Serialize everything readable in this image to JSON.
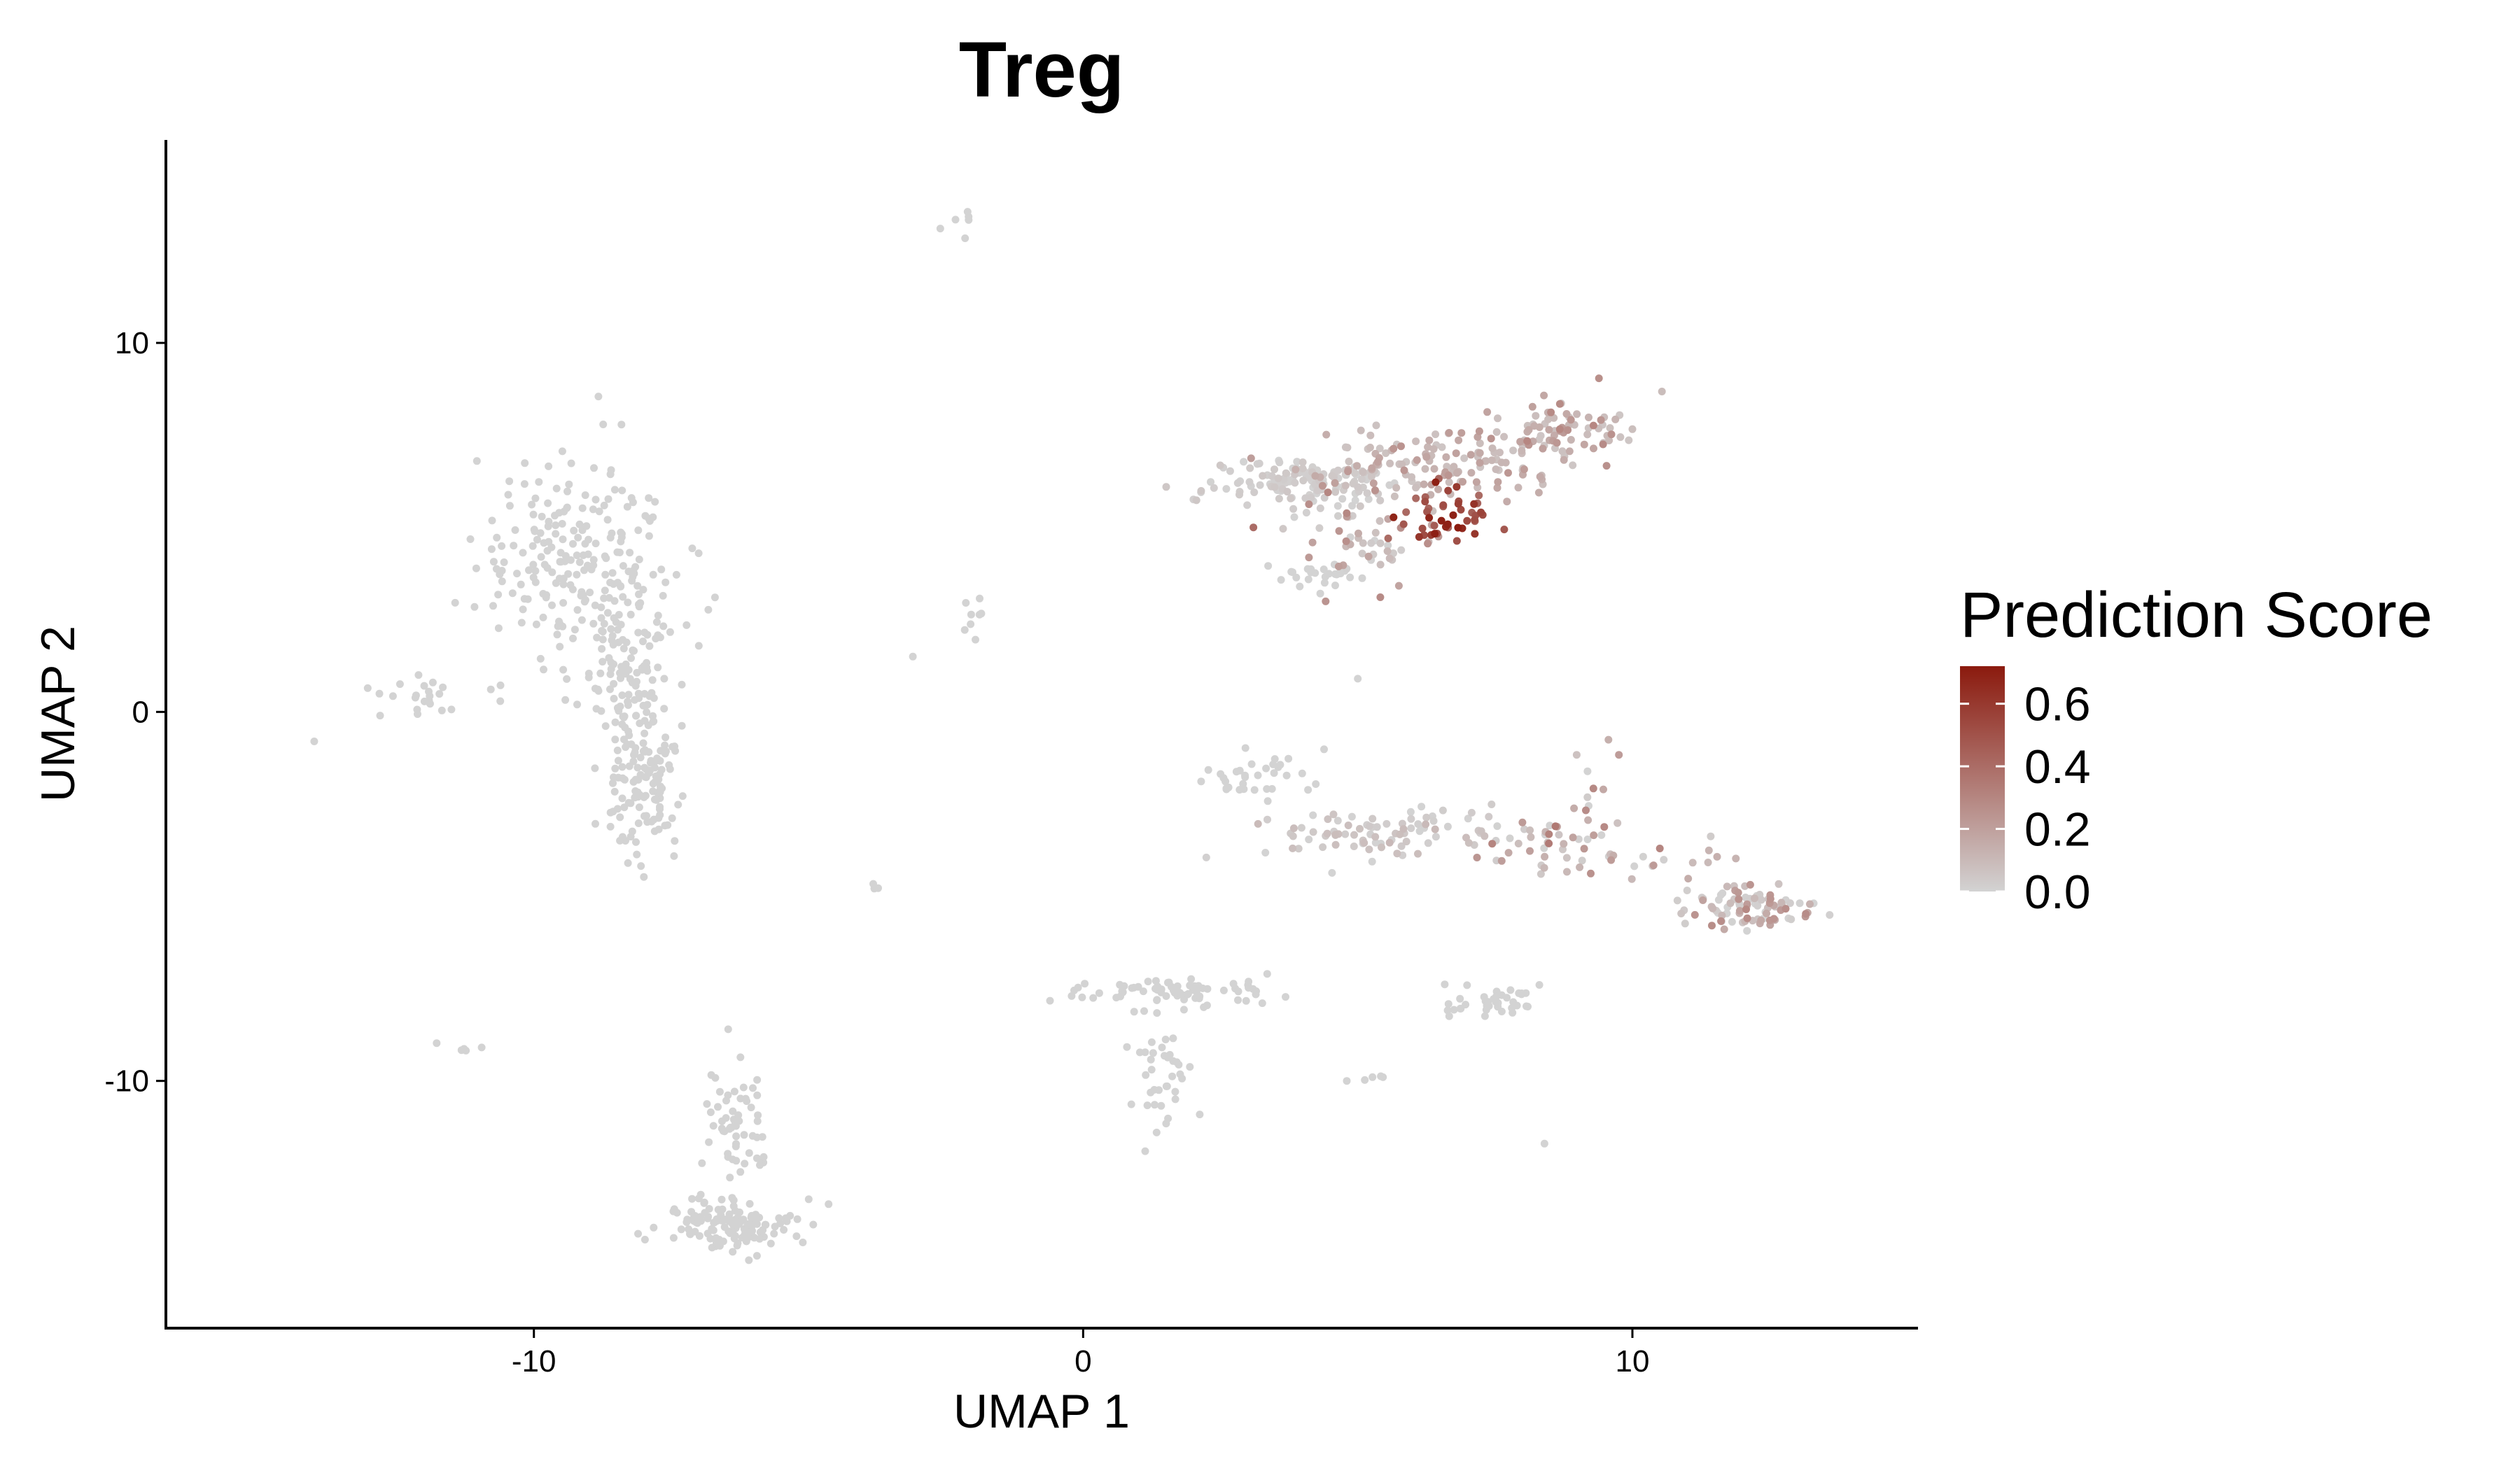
{
  "chart_data": {
    "type": "scatter",
    "title": "Treg",
    "xlabel": "UMAP 1",
    "ylabel": "UMAP 2",
    "xlim": [
      -16.7,
      15.2
    ],
    "ylim": [
      -16.7,
      15.5
    ],
    "x_ticks": [
      -10,
      0,
      10
    ],
    "x_tick_labels": [
      "-10",
      "0",
      "10"
    ],
    "y_ticks": [
      -10,
      0,
      10
    ],
    "y_tick_labels": [
      "-10",
      "0",
      "10"
    ],
    "grid": false,
    "legend": {
      "title": "Prediction Score",
      "placement": "right",
      "ticks": [
        0.0,
        0.2,
        0.4,
        0.6
      ],
      "tick_labels": [
        "0.0",
        "0.2",
        "0.4",
        "0.6"
      ],
      "min": 0.0,
      "max": 0.72,
      "low_color": "#d3d3d3",
      "high_color": "#8b1a0e"
    },
    "point_color_low": "#d3d3d3",
    "point_color_high": "#8b1a0e",
    "clusters": [
      {
        "cx": -9.2,
        "cy": 4.2,
        "sx": 0.9,
        "sy": 1.5,
        "n": 220,
        "s": [
          0,
          0
        ]
      },
      {
        "cx": -8.2,
        "cy": 1.0,
        "sx": 0.35,
        "sy": 1.2,
        "n": 110,
        "s": [
          0,
          0
        ]
      },
      {
        "cx": -8.0,
        "cy": -2.0,
        "sx": 0.35,
        "sy": 0.9,
        "n": 120,
        "s": [
          0,
          0
        ]
      },
      {
        "cx": -12.2,
        "cy": 0.4,
        "sx": 0.5,
        "sy": 0.3,
        "n": 22,
        "s": [
          0,
          0
        ]
      },
      {
        "cx": -6.3,
        "cy": -11.2,
        "sx": 0.25,
        "sy": 0.9,
        "n": 60,
        "s": [
          0,
          0
        ]
      },
      {
        "cx": -6.5,
        "cy": -13.9,
        "sx": 0.6,
        "sy": 0.35,
        "n": 130,
        "s": [
          0,
          0
        ]
      },
      {
        "cx": 4.0,
        "cy": 6.2,
        "sx": 0.9,
        "sy": 0.35,
        "n": 140,
        "s": [
          0,
          0.05
        ]
      },
      {
        "cx": 6.4,
        "cy": 6.8,
        "sx": 1.2,
        "sy": 0.45,
        "n": 130,
        "s": [
          0.05,
          0.25
        ]
      },
      {
        "cx": 8.8,
        "cy": 7.6,
        "sx": 0.7,
        "sy": 0.45,
        "n": 80,
        "s": [
          0.05,
          0.3
        ]
      },
      {
        "cx": 6.6,
        "cy": 5.4,
        "sx": 0.45,
        "sy": 0.4,
        "n": 45,
        "s": [
          0.4,
          0.72
        ]
      },
      {
        "cx": 5.2,
        "cy": 4.6,
        "sx": 0.7,
        "sy": 0.6,
        "n": 50,
        "s": [
          0,
          0.3
        ]
      },
      {
        "cx": 4.3,
        "cy": 3.7,
        "sx": 0.4,
        "sy": 0.25,
        "n": 25,
        "s": [
          0,
          0
        ]
      },
      {
        "cx": 3.2,
        "cy": -1.9,
        "sx": 0.7,
        "sy": 0.35,
        "n": 35,
        "s": [
          0,
          0
        ]
      },
      {
        "cx": 5.5,
        "cy": -3.3,
        "sx": 1.1,
        "sy": 0.35,
        "n": 90,
        "s": [
          0,
          0.1
        ]
      },
      {
        "cx": 8.5,
        "cy": -3.7,
        "sx": 0.8,
        "sy": 0.45,
        "n": 40,
        "s": [
          0,
          0.35
        ]
      },
      {
        "cx": 9.3,
        "cy": -2.0,
        "sx": 0.35,
        "sy": 0.7,
        "n": 12,
        "s": [
          0,
          0.3
        ]
      },
      {
        "cx": 10.7,
        "cy": -4.1,
        "sx": 0.5,
        "sy": 0.3,
        "n": 14,
        "s": [
          0,
          0.25
        ]
      },
      {
        "cx": 12.1,
        "cy": -5.3,
        "sx": 0.6,
        "sy": 0.3,
        "n": 85,
        "s": [
          0,
          0.3
        ]
      },
      {
        "cx": 1.7,
        "cy": -7.6,
        "sx": 0.9,
        "sy": 0.2,
        "n": 70,
        "s": [
          0,
          0
        ]
      },
      {
        "cx": 1.4,
        "cy": -9.8,
        "sx": 0.3,
        "sy": 1.0,
        "n": 40,
        "s": [
          0,
          0
        ]
      },
      {
        "cx": 7.5,
        "cy": -7.9,
        "sx": 0.45,
        "sy": 0.18,
        "n": 40,
        "s": [
          0,
          0
        ]
      },
      {
        "cx": -2.0,
        "cy": 2.5,
        "sx": 0.12,
        "sy": 0.35,
        "n": 8,
        "s": [
          0,
          0
        ]
      },
      {
        "cx": -2.1,
        "cy": 13.3,
        "sx": 0.15,
        "sy": 0.2,
        "n": 5,
        "s": [
          0,
          0
        ]
      },
      {
        "cx": -11.3,
        "cy": -9.1,
        "sx": 0.35,
        "sy": 0.07,
        "n": 5,
        "s": [
          0,
          0
        ]
      },
      {
        "cx": 5.2,
        "cy": -9.9,
        "sx": 0.2,
        "sy": 0.08,
        "n": 4,
        "s": [
          0,
          0
        ]
      },
      {
        "cx": -3.8,
        "cy": -4.8,
        "sx": 0.06,
        "sy": 0.06,
        "n": 3,
        "s": [
          0,
          0
        ]
      }
    ],
    "extra_points": [
      {
        "x": -14.0,
        "y": -0.8,
        "s": 0
      },
      {
        "x": -12.8,
        "y": -0.1,
        "s": 0
      },
      {
        "x": -7.0,
        "y": 4.3,
        "s": 0
      },
      {
        "x": -3.1,
        "y": 1.5,
        "s": 0
      },
      {
        "x": -2.6,
        "y": 13.1,
        "s": 0
      },
      {
        "x": 5.0,
        "y": 0.9,
        "s": 0
      },
      {
        "x": 8.4,
        "y": -11.7,
        "s": 0
      },
      {
        "x": 4.8,
        "y": -10.0,
        "s": 0
      },
      {
        "x": 10.5,
        "y": -3.7,
        "s": 0.3
      },
      {
        "x": 8.6,
        "y": -3.1,
        "s": 0.35
      },
      {
        "x": 6.8,
        "y": 6.1,
        "s": 0.6
      },
      {
        "x": 3.1,
        "y": 5.0,
        "s": 0.4
      }
    ]
  }
}
